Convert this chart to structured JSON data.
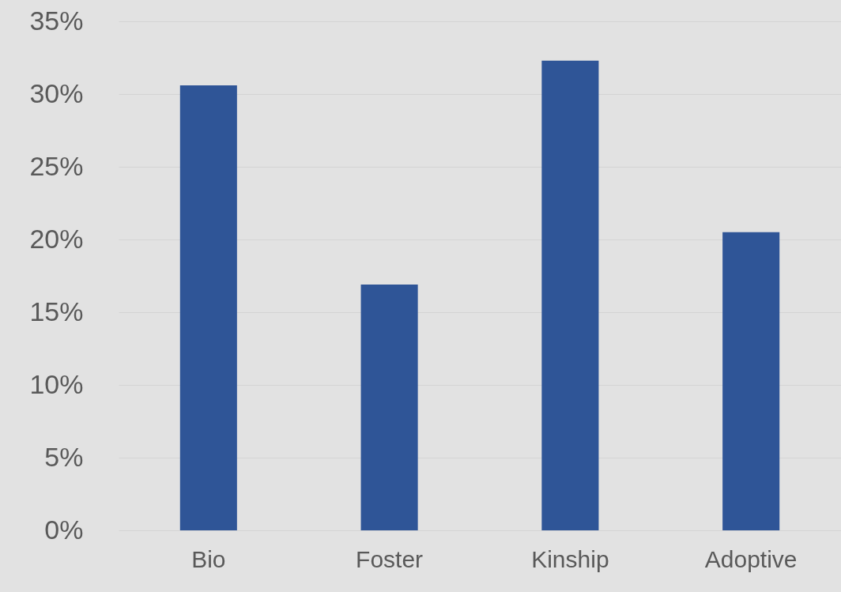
{
  "chart_data": {
    "type": "bar",
    "categories": [
      "Bio",
      "Foster",
      "Kinship",
      "Adoptive"
    ],
    "values": [
      30.6,
      16.9,
      32.3,
      20.5
    ],
    "color": "#2f5597",
    "ylim": [
      0,
      35
    ],
    "yticks": [
      {
        "value": 0,
        "label": "0%"
      },
      {
        "value": 5,
        "label": "5%"
      },
      {
        "value": 10,
        "label": "10%"
      },
      {
        "value": 15,
        "label": "15%"
      },
      {
        "value": 20,
        "label": "20%"
      },
      {
        "value": 25,
        "label": "25%"
      },
      {
        "value": 30,
        "label": "30%"
      },
      {
        "value": 35,
        "label": "35%"
      }
    ],
    "grid": "y"
  }
}
